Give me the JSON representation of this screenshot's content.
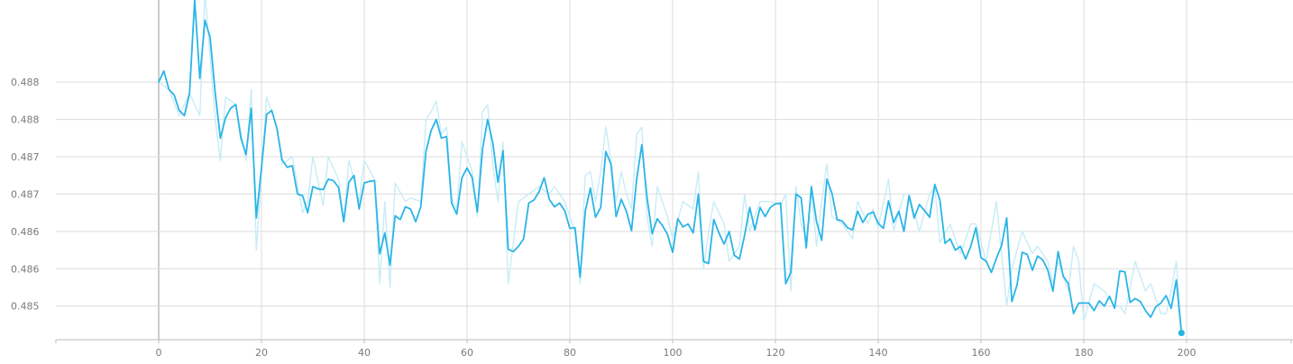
{
  "chart_data": {
    "type": "line",
    "title": "",
    "xlabel": "",
    "ylabel": "",
    "xlim": [
      -20,
      220
    ],
    "ylim": [
      0.48455,
      0.4891
    ],
    "grid": true,
    "x_ticks": [
      {
        "value": 0,
        "label": "0"
      },
      {
        "value": 20,
        "label": "20"
      },
      {
        "value": 40,
        "label": "40"
      },
      {
        "value": 60,
        "label": "60"
      },
      {
        "value": 80,
        "label": "80"
      },
      {
        "value": 100,
        "label": "100"
      },
      {
        "value": 120,
        "label": "120"
      },
      {
        "value": 140,
        "label": "140"
      },
      {
        "value": 160,
        "label": "160"
      },
      {
        "value": 180,
        "label": "180"
      },
      {
        "value": 200,
        "label": "200"
      }
    ],
    "y_ticks": [
      {
        "value": 0.485,
        "label": "0.485"
      },
      {
        "value": 0.4855,
        "label": "0.486"
      },
      {
        "value": 0.486,
        "label": "0.486"
      },
      {
        "value": 0.4865,
        "label": "0.487"
      },
      {
        "value": 0.487,
        "label": "0.487"
      },
      {
        "value": 0.4875,
        "label": "0.488"
      },
      {
        "value": 0.488,
        "label": "0.488"
      }
    ],
    "series": [
      {
        "role": "smoothed",
        "color": "#2bb5e6",
        "x": [
          0,
          1,
          2,
          3,
          4,
          5,
          6,
          7,
          8,
          9,
          10,
          11,
          12,
          13,
          14,
          15,
          16,
          17,
          18,
          19,
          20,
          21,
          22,
          23,
          24,
          25,
          26,
          27,
          28,
          29,
          30,
          31,
          32,
          33,
          34,
          35,
          36,
          37,
          38,
          39,
          40,
          41,
          42,
          43,
          44,
          45,
          46,
          47,
          48,
          49,
          50,
          51,
          52,
          53,
          54,
          55,
          56,
          57,
          58,
          59,
          60,
          61,
          62,
          63,
          64,
          65,
          66,
          67,
          68,
          69,
          70,
          71,
          72,
          73,
          74,
          75,
          76,
          77,
          78,
          79,
          80,
          81,
          82,
          83,
          84,
          85,
          86,
          87,
          88,
          89,
          90,
          91,
          92,
          93,
          94,
          95,
          96,
          97,
          98,
          99,
          100,
          101,
          102,
          103,
          104,
          105,
          106,
          107,
          108,
          109,
          110,
          111,
          112,
          113,
          114,
          115,
          116,
          117,
          118,
          119,
          120,
          121,
          122,
          123,
          124,
          125,
          126,
          127,
          128,
          129,
          130,
          131,
          132,
          133,
          134,
          135,
          136,
          137,
          138,
          139,
          140,
          141,
          142,
          143,
          144,
          145,
          146,
          147,
          148,
          149,
          150,
          151,
          152,
          153,
          154,
          155,
          156,
          157,
          158,
          159,
          160,
          161,
          162,
          163,
          164,
          165,
          166,
          167,
          168,
          169,
          170,
          171,
          172,
          173,
          174,
          175,
          176,
          177,
          178,
          179,
          180,
          181,
          182,
          183,
          184,
          185,
          186,
          187,
          188,
          189,
          190,
          191,
          192,
          193,
          194,
          195,
          196,
          197,
          198,
          199
        ],
        "y": [
          0.488,
          0.48815,
          0.4879,
          0.48783,
          0.48762,
          0.48755,
          0.48785,
          0.4891,
          0.48805,
          0.48883,
          0.4886,
          0.48785,
          0.48725,
          0.48752,
          0.48765,
          0.4877,
          0.48725,
          0.48703,
          0.48765,
          0.48618,
          0.48685,
          0.48757,
          0.48762,
          0.48738,
          0.48696,
          0.48686,
          0.48688,
          0.4865,
          0.48648,
          0.48625,
          0.4866,
          0.48657,
          0.48656,
          0.4867,
          0.48668,
          0.48659,
          0.48613,
          0.48666,
          0.48675,
          0.4863,
          0.48665,
          0.48667,
          0.48668,
          0.4857,
          0.48598,
          0.48555,
          0.48621,
          0.48616,
          0.48633,
          0.4863,
          0.48613,
          0.48633,
          0.48707,
          0.48735,
          0.4875,
          0.48725,
          0.48727,
          0.48638,
          0.48623,
          0.48672,
          0.48685,
          0.48672,
          0.48626,
          0.4871,
          0.4875,
          0.48719,
          0.48666,
          0.48708,
          0.48576,
          0.48573,
          0.4858,
          0.4859,
          0.48638,
          0.48642,
          0.48653,
          0.48672,
          0.48643,
          0.48633,
          0.48638,
          0.48628,
          0.48604,
          0.48605,
          0.48539,
          0.48627,
          0.48658,
          0.48619,
          0.48632,
          0.48707,
          0.4869,
          0.4862,
          0.48643,
          0.48627,
          0.48601,
          0.4867,
          0.48716,
          0.48646,
          0.48597,
          0.48617,
          0.48608,
          0.48596,
          0.48572,
          0.48617,
          0.48606,
          0.4861,
          0.48598,
          0.4865,
          0.4856,
          0.48557,
          0.48616,
          0.48598,
          0.48583,
          0.486,
          0.48568,
          0.48563,
          0.48595,
          0.48632,
          0.48602,
          0.48632,
          0.4862,
          0.48632,
          0.48637,
          0.48638,
          0.4853,
          0.48545,
          0.4865,
          0.48645,
          0.48578,
          0.4866,
          0.48613,
          0.48588,
          0.4867,
          0.48651,
          0.48616,
          0.48614,
          0.48605,
          0.48602,
          0.48627,
          0.48612,
          0.48623,
          0.48626,
          0.48611,
          0.48604,
          0.48641,
          0.48612,
          0.48627,
          0.486,
          0.48648,
          0.48618,
          0.48636,
          0.48628,
          0.48619,
          0.48663,
          0.48642,
          0.48584,
          0.4859,
          0.48575,
          0.4858,
          0.48563,
          0.4858,
          0.48605,
          0.48565,
          0.4856,
          0.48545,
          0.48564,
          0.48581,
          0.48618,
          0.48506,
          0.48528,
          0.48572,
          0.48569,
          0.48548,
          0.48567,
          0.48562,
          0.48548,
          0.4852,
          0.48573,
          0.4854,
          0.4853,
          0.4849,
          0.48504,
          0.48504,
          0.48504,
          0.48494,
          0.48507,
          0.485,
          0.48513,
          0.48497,
          0.48547,
          0.48546,
          0.48505,
          0.4851,
          0.48506,
          0.48494,
          0.48485,
          0.48499,
          0.48504,
          0.48514,
          0.48497,
          0.48535,
          0.48464
        ]
      },
      {
        "role": "raw",
        "color": "#c8ecf7",
        "x": [
          0,
          2,
          4,
          6,
          8,
          9,
          11,
          12,
          13,
          15,
          17,
          18,
          19,
          21,
          23,
          24,
          26,
          28,
          29,
          30,
          32,
          33,
          35,
          36,
          37,
          38,
          39,
          40,
          42,
          43,
          44,
          45,
          46,
          48,
          49,
          51,
          52,
          53,
          54,
          55,
          56,
          57,
          58,
          59,
          61,
          62,
          63,
          64,
          65,
          66,
          67,
          68,
          70,
          72,
          74,
          76,
          77,
          79,
          81,
          82,
          83,
          84,
          85,
          86,
          87,
          88,
          89,
          90,
          91,
          92,
          93,
          94,
          95,
          96,
          97,
          99,
          100,
          102,
          104,
          105,
          106,
          107,
          108,
          110,
          111,
          113,
          114,
          115,
          117,
          119,
          121,
          122,
          123,
          124,
          125,
          126,
          127,
          128,
          129,
          130,
          131,
          133,
          135,
          136,
          138,
          139,
          140,
          142,
          143,
          145,
          146,
          148,
          150,
          151,
          152,
          154,
          156,
          158,
          159,
          161,
          163,
          165,
          166,
          168,
          170,
          171,
          173,
          174,
          175,
          177,
          178,
          179,
          180,
          182,
          184,
          186,
          187,
          188,
          190,
          192,
          193,
          195,
          196,
          197,
          198,
          199
        ],
        "y": [
          0.488,
          0.4879,
          0.48755,
          0.48785,
          0.48755,
          0.4892,
          0.4875,
          0.48695,
          0.4878,
          0.4877,
          0.48695,
          0.4879,
          0.48575,
          0.4878,
          0.4874,
          0.4869,
          0.487,
          0.48625,
          0.4864,
          0.487,
          0.48635,
          0.487,
          0.4867,
          0.48615,
          0.48695,
          0.4867,
          0.4864,
          0.48695,
          0.4867,
          0.4853,
          0.4864,
          0.48525,
          0.48665,
          0.4864,
          0.48645,
          0.4864,
          0.4875,
          0.4876,
          0.48775,
          0.4873,
          0.4874,
          0.48645,
          0.4863,
          0.4872,
          0.4868,
          0.4862,
          0.4876,
          0.4877,
          0.4869,
          0.4864,
          0.4872,
          0.4853,
          0.4864,
          0.4865,
          0.4866,
          0.4865,
          0.4866,
          0.4864,
          0.486,
          0.4853,
          0.48675,
          0.4868,
          0.4864,
          0.4868,
          0.4874,
          0.48695,
          0.4864,
          0.4868,
          0.4865,
          0.4863,
          0.4873,
          0.4874,
          0.4862,
          0.4858,
          0.4866,
          0.4862,
          0.4859,
          0.4864,
          0.4863,
          0.4868,
          0.4855,
          0.486,
          0.4864,
          0.4861,
          0.4856,
          0.4858,
          0.4865,
          0.486,
          0.4864,
          0.4864,
          0.48635,
          0.4865,
          0.4852,
          0.4866,
          0.4861,
          0.4859,
          0.48655,
          0.4858,
          0.4864,
          0.4869,
          0.4862,
          0.4861,
          0.4859,
          0.4864,
          0.4861,
          0.4863,
          0.48605,
          0.4867,
          0.486,
          0.4865,
          0.4865,
          0.486,
          0.4865,
          0.4866,
          0.48585,
          0.4861,
          0.4857,
          0.4861,
          0.4861,
          0.4856,
          0.4864,
          0.485,
          0.4855,
          0.486,
          0.4857,
          0.4858,
          0.4856,
          0.4853,
          0.4856,
          0.4852,
          0.4858,
          0.4856,
          0.4848,
          0.4853,
          0.4852,
          0.485,
          0.485,
          0.4849,
          0.4856,
          0.4852,
          0.4853,
          0.4849,
          0.4849,
          0.4852,
          0.4856,
          0.48464
        ]
      }
    ],
    "end_marker": {
      "x": 199,
      "y": 0.48464
    }
  }
}
